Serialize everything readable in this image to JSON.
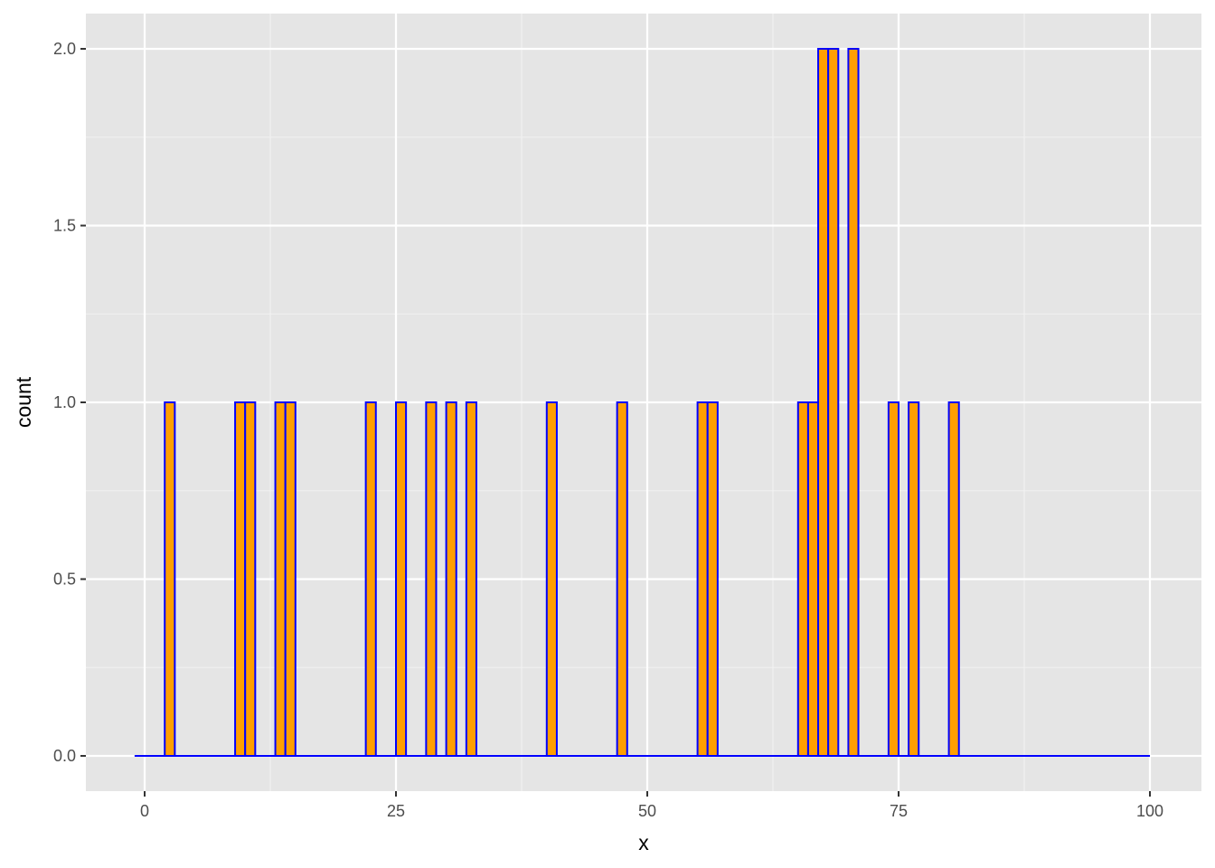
{
  "chart_data": {
    "type": "bar",
    "subtype": "histogram",
    "xlabel": "x",
    "ylabel": "count",
    "xlim": [
      -1.5,
      100
    ],
    "ylim": [
      0,
      2.1
    ],
    "x_ticks": [
      0,
      25,
      50,
      75,
      100
    ],
    "x_tick_labels": [
      "0",
      "25",
      "50",
      "75",
      "100"
    ],
    "y_ticks": [
      0,
      0.5,
      1,
      1.5,
      2
    ],
    "y_tick_labels": [
      "0.0",
      "0.5",
      "1.0",
      "1.5",
      "2.0"
    ],
    "bin_width": 1,
    "bins": [
      {
        "x": 2.5,
        "count": 1
      },
      {
        "x": 9.5,
        "count": 1
      },
      {
        "x": 10.5,
        "count": 1
      },
      {
        "x": 13.5,
        "count": 1
      },
      {
        "x": 14.5,
        "count": 1
      },
      {
        "x": 22.5,
        "count": 1
      },
      {
        "x": 25.5,
        "count": 1
      },
      {
        "x": 28.5,
        "count": 1
      },
      {
        "x": 30.5,
        "count": 1
      },
      {
        "x": 32.5,
        "count": 1
      },
      {
        "x": 40.5,
        "count": 1
      },
      {
        "x": 47.5,
        "count": 1
      },
      {
        "x": 55.5,
        "count": 1
      },
      {
        "x": 56.5,
        "count": 1
      },
      {
        "x": 65.5,
        "count": 1
      },
      {
        "x": 66.5,
        "count": 1
      },
      {
        "x": 67.5,
        "count": 2
      },
      {
        "x": 68.5,
        "count": 2
      },
      {
        "x": 70.5,
        "count": 2
      },
      {
        "x": 74.5,
        "count": 1
      },
      {
        "x": 76.5,
        "count": 1
      },
      {
        "x": 80.5,
        "count": 1
      }
    ],
    "baseline_range": [
      -1,
      100
    ],
    "grid": true,
    "panel_background": "#e5e5e5",
    "bar_fill": "#ff9f00",
    "bar_outline": "#0000ff"
  }
}
